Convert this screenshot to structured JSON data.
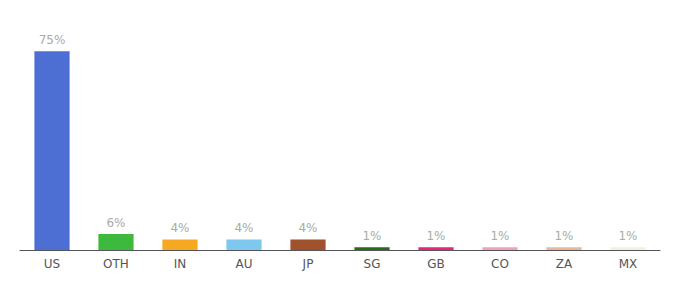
{
  "chart_data": {
    "type": "bar",
    "categories": [
      "US",
      "OTH",
      "IN",
      "AU",
      "JP",
      "SG",
      "GB",
      "CO",
      "ZA",
      "MX"
    ],
    "values": [
      75,
      6,
      4,
      4,
      4,
      1,
      1,
      1,
      1,
      1
    ],
    "value_labels": [
      "75%",
      "6%",
      "4%",
      "4%",
      "4%",
      "1%",
      "1%",
      "1%",
      "1%",
      "1%"
    ],
    "colors": [
      "#4d6fd4",
      "#3dba3d",
      "#f5a820",
      "#7ec8f0",
      "#a0522d",
      "#2a6b1a",
      "#e8257a",
      "#f0a0b8",
      "#e8b89a",
      "#f5f0d8"
    ],
    "ylim": [
      0,
      83
    ],
    "data_labels": true,
    "tick_labels": "x",
    "grid": false
  }
}
